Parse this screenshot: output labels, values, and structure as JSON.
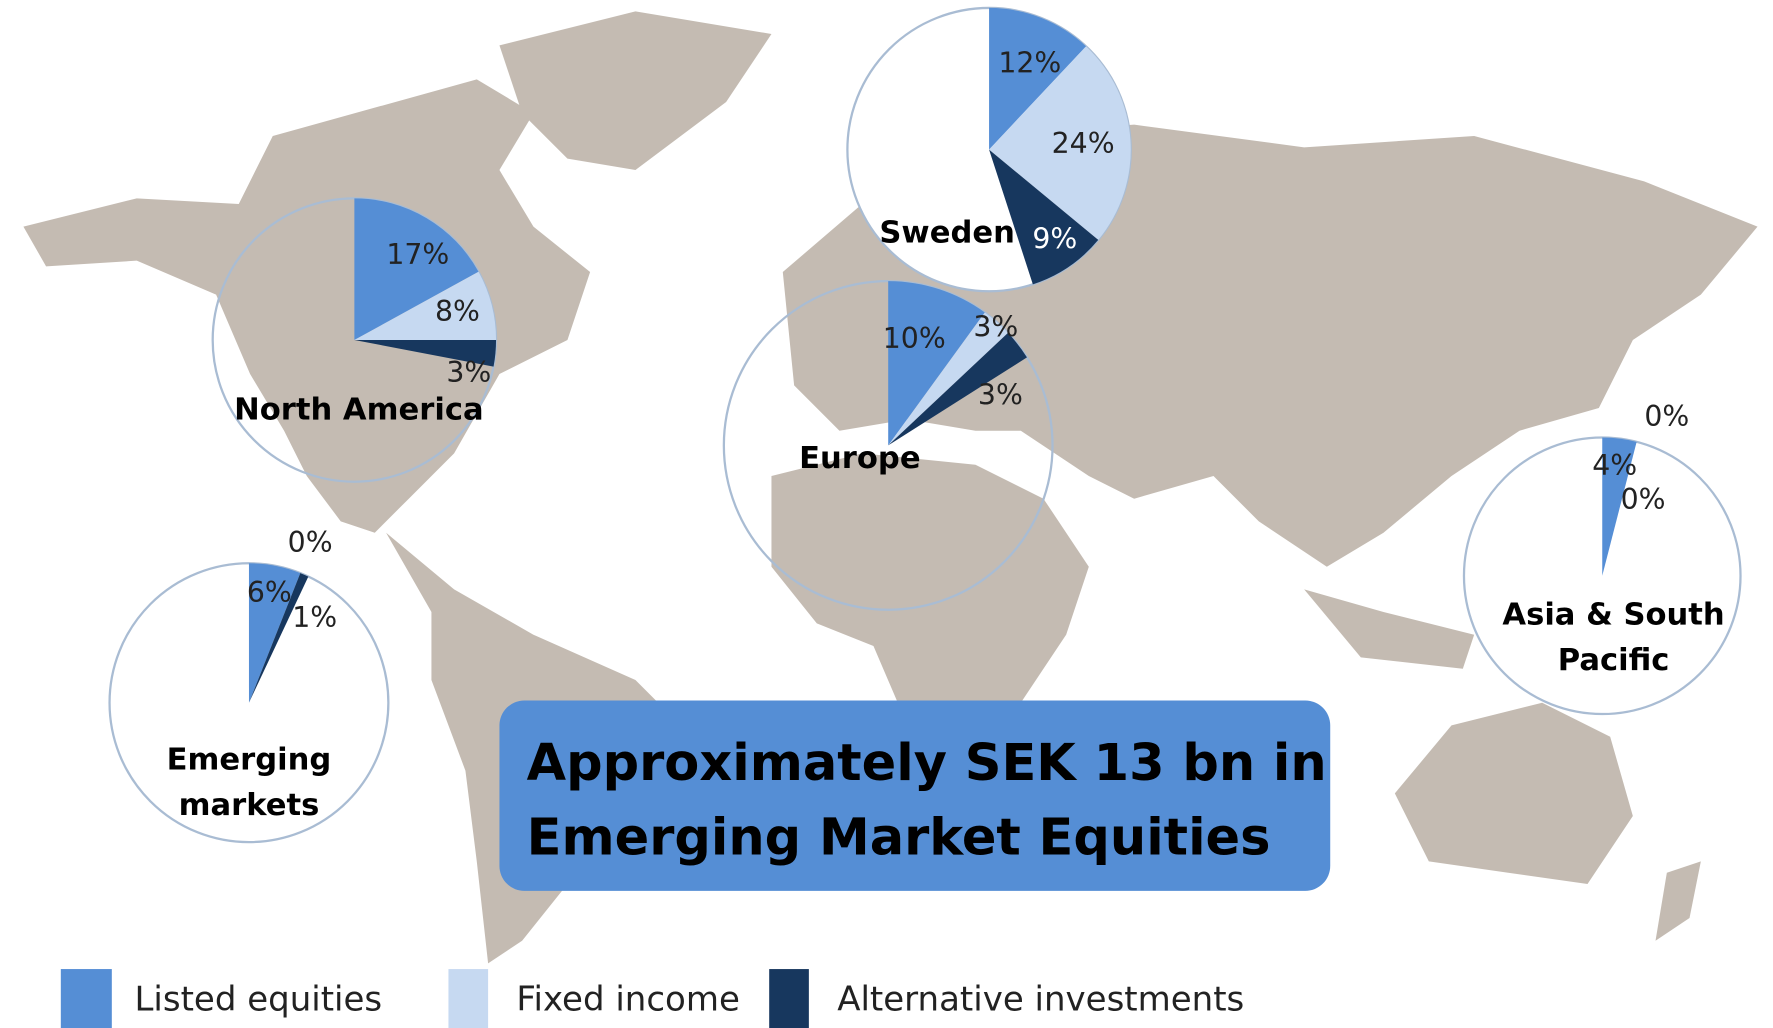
{
  "chart_data": [
    {
      "type": "pie",
      "title": "Sweden",
      "values": [
        12,
        24,
        9
      ],
      "value_labels": [
        "12%",
        "24%",
        "9%"
      ]
    },
    {
      "type": "pie",
      "title": "North America",
      "values": [
        17,
        8,
        3
      ],
      "value_labels": [
        "17%",
        "8%",
        "3%"
      ]
    },
    {
      "type": "pie",
      "title": "Europe",
      "values": [
        10,
        3,
        3
      ],
      "value_labels": [
        "10%",
        "3%",
        "3%"
      ]
    },
    {
      "type": "pie",
      "title": "Emerging markets",
      "values": [
        6,
        0,
        1
      ],
      "value_labels": [
        "6%",
        "0%",
        "1%"
      ]
    },
    {
      "type": "pie",
      "title": "Asia & South Pacific",
      "values": [
        4,
        0,
        0
      ],
      "value_labels": [
        "4%",
        "0%",
        "0%"
      ]
    }
  ],
  "legend": [
    {
      "name": "Listed equities",
      "color": "#558ed5"
    },
    {
      "name": "Fixed income",
      "color": "#c6d9f1"
    },
    {
      "name": "Alternative investments",
      "color": "#17375e"
    }
  ],
  "headline": "Approximately SEK 13 bn in Emerging Market Equities"
}
